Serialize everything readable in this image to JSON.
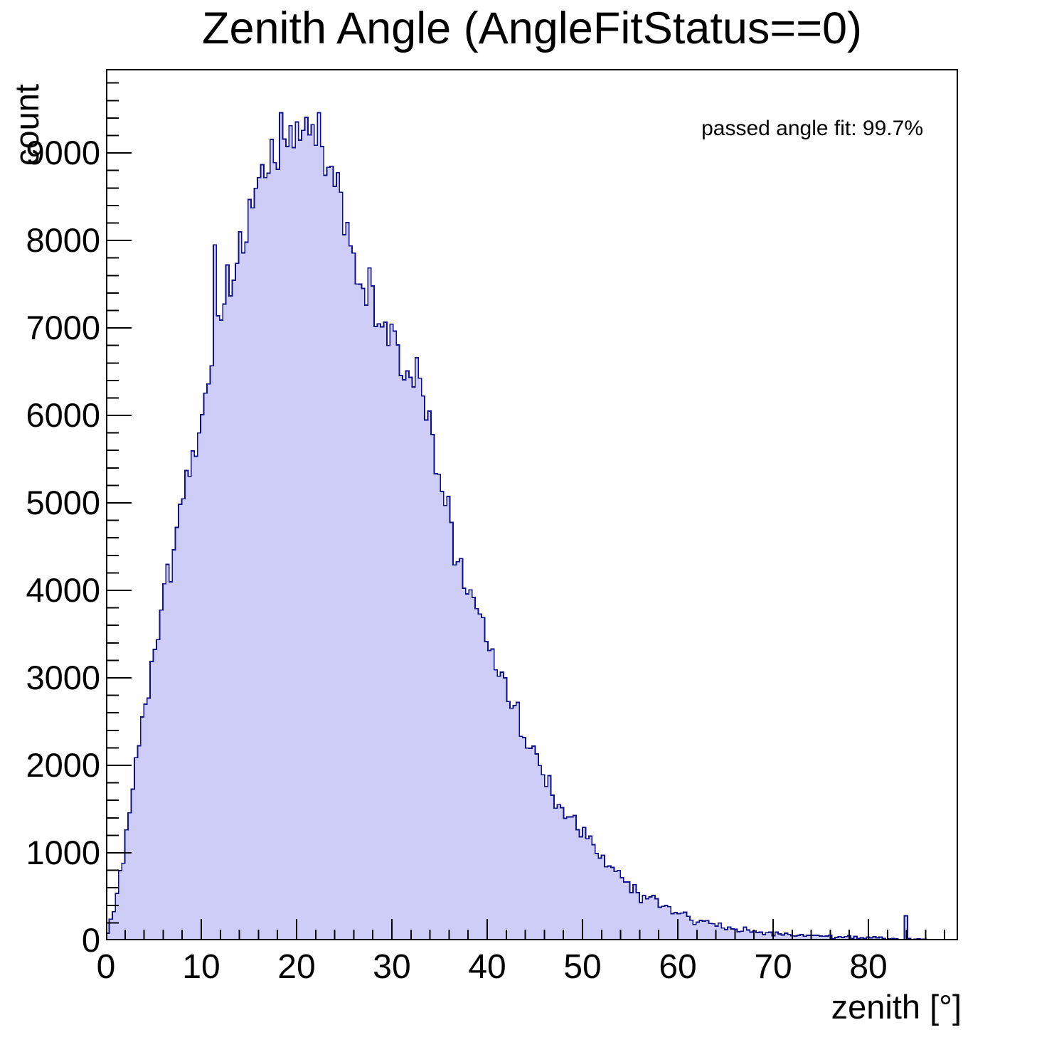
{
  "chart_data": {
    "type": "histogram",
    "title": "Zenith Angle (AngleFitStatus==0)",
    "xlabel": "zenith [°]",
    "ylabel": "count",
    "annotation": "passed angle fit: 99.7%",
    "x_range": [
      0,
      89.4
    ],
    "y_range": [
      0,
      9960
    ],
    "grid": false,
    "legend": "none",
    "x_ticks": {
      "major_values": [
        0,
        10,
        20,
        30,
        40,
        50,
        60,
        70,
        80
      ],
      "major_labels": [
        "0",
        "10",
        "20",
        "30",
        "40",
        "50",
        "60",
        "70",
        "80"
      ],
      "minor_step": 2
    },
    "y_ticks": {
      "major_values": [
        0,
        1000,
        2000,
        3000,
        4000,
        5000,
        6000,
        7000,
        8000,
        9000
      ],
      "major_labels": [
        "0",
        "1000",
        "2000",
        "3000",
        "4000",
        "5000",
        "6000",
        "7000",
        "8000",
        "9000"
      ],
      "minor_step": 200
    },
    "n_bins": 270,
    "envelope_deg": [
      0,
      1,
      2,
      3,
      4,
      5,
      6,
      7,
      8,
      9,
      10,
      11,
      12,
      13,
      14,
      15,
      16,
      17,
      18,
      19,
      20,
      21,
      22,
      23,
      24,
      25,
      26,
      27,
      28,
      29,
      30,
      31,
      32,
      33,
      34,
      35,
      36,
      37,
      38,
      39,
      40,
      41,
      42,
      43,
      44,
      45,
      46,
      47,
      48,
      49,
      50,
      51,
      52,
      53,
      54,
      55,
      56,
      57,
      58,
      59,
      60,
      61,
      62,
      63,
      64,
      65,
      66,
      67,
      68,
      69,
      70,
      71,
      72,
      73,
      74,
      75,
      76,
      77,
      78,
      79,
      80,
      81,
      82,
      83,
      84,
      85,
      86,
      87,
      88,
      89,
      89.4
    ],
    "envelope_count": [
      30,
      400,
      1150,
      1900,
      2620,
      3250,
      3870,
      4470,
      5060,
      5450,
      5840,
      6500,
      7100,
      7500,
      7900,
      8300,
      8550,
      8850,
      9150,
      9230,
      9230,
      9200,
      9150,
      9000,
      8800,
      8300,
      7800,
      7450,
      7350,
      7000,
      6900,
      6650,
      6500,
      6300,
      5900,
      5300,
      4800,
      4350,
      4050,
      3750,
      3450,
      3150,
      2900,
      2620,
      2380,
      2120,
      1920,
      1720,
      1540,
      1370,
      1230,
      1090,
      940,
      820,
      720,
      620,
      550,
      500,
      430,
      370,
      320,
      270,
      230,
      200,
      175,
      150,
      130,
      112,
      98,
      88,
      80,
      72,
      64,
      57,
      51,
      46,
      41,
      36,
      32,
      28,
      25,
      21,
      18,
      15,
      13,
      11,
      9,
      7,
      5,
      3,
      2
    ],
    "outlier_bins": [
      {
        "deg": 11.3,
        "count": 7950
      },
      {
        "deg": 22.5,
        "count": 9460
      },
      {
        "deg": 84.0,
        "count": 280
      }
    ],
    "noise_sigma_scale": 1.7,
    "colors": {
      "fill": "#cdcdf8",
      "line": "#10108a",
      "axis": "#000000",
      "text": "#000000"
    }
  }
}
